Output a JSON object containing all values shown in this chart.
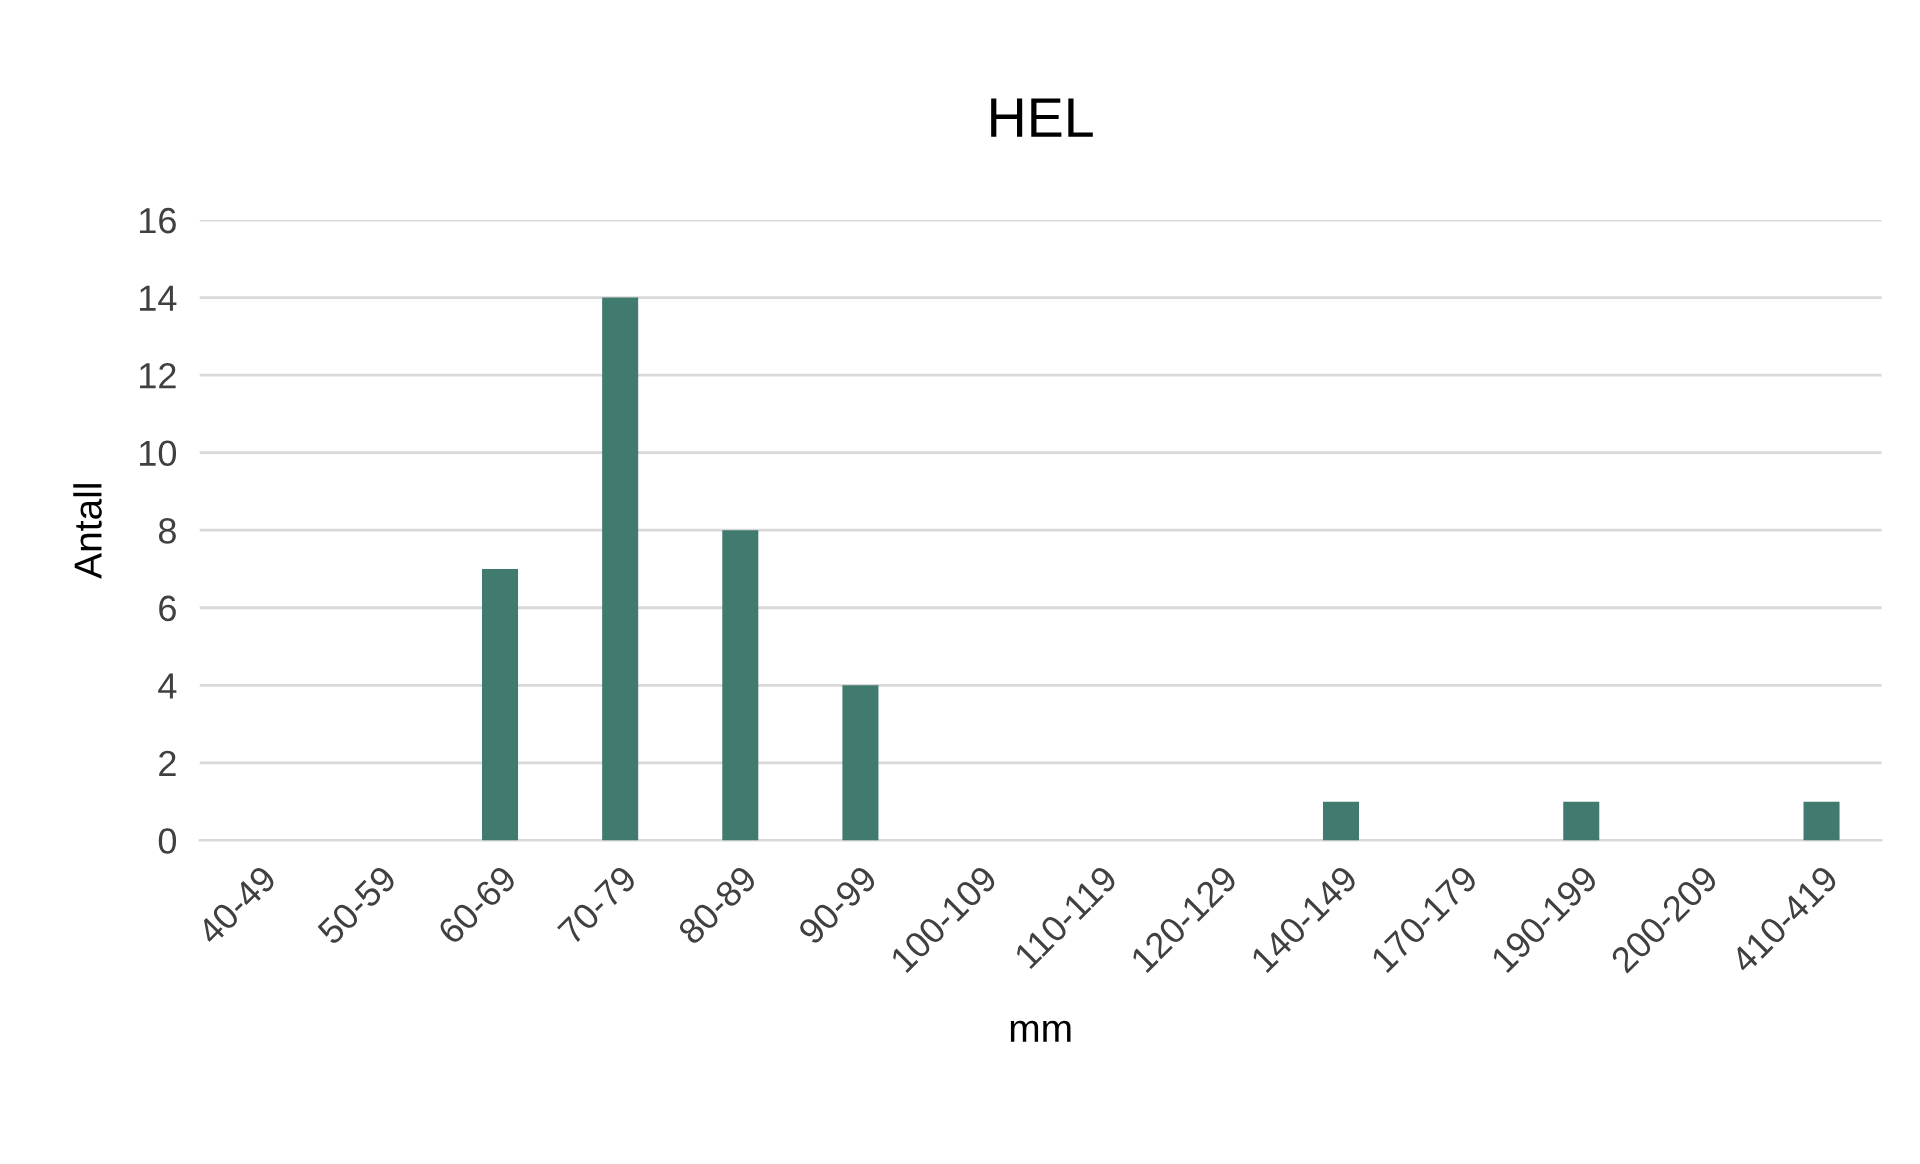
{
  "chart_data": {
    "type": "bar",
    "title": "HEL",
    "xlabel": "mm",
    "ylabel": "Antall",
    "categories": [
      "40-49",
      "50-59",
      "60-69",
      "70-79",
      "80-89",
      "90-99",
      "100-109",
      "110-119",
      "120-129",
      "140-149",
      "170-179",
      "190-199",
      "200-209",
      "410-419"
    ],
    "values": [
      0,
      0,
      7,
      14,
      8,
      4,
      0,
      0,
      0,
      1,
      0,
      1,
      0,
      1
    ],
    "color": "#417a6e",
    "ylim": [
      0,
      16
    ],
    "yticks": [
      0,
      2,
      4,
      6,
      8,
      10,
      12,
      14,
      16
    ],
    "grid": "y",
    "legend": false
  }
}
